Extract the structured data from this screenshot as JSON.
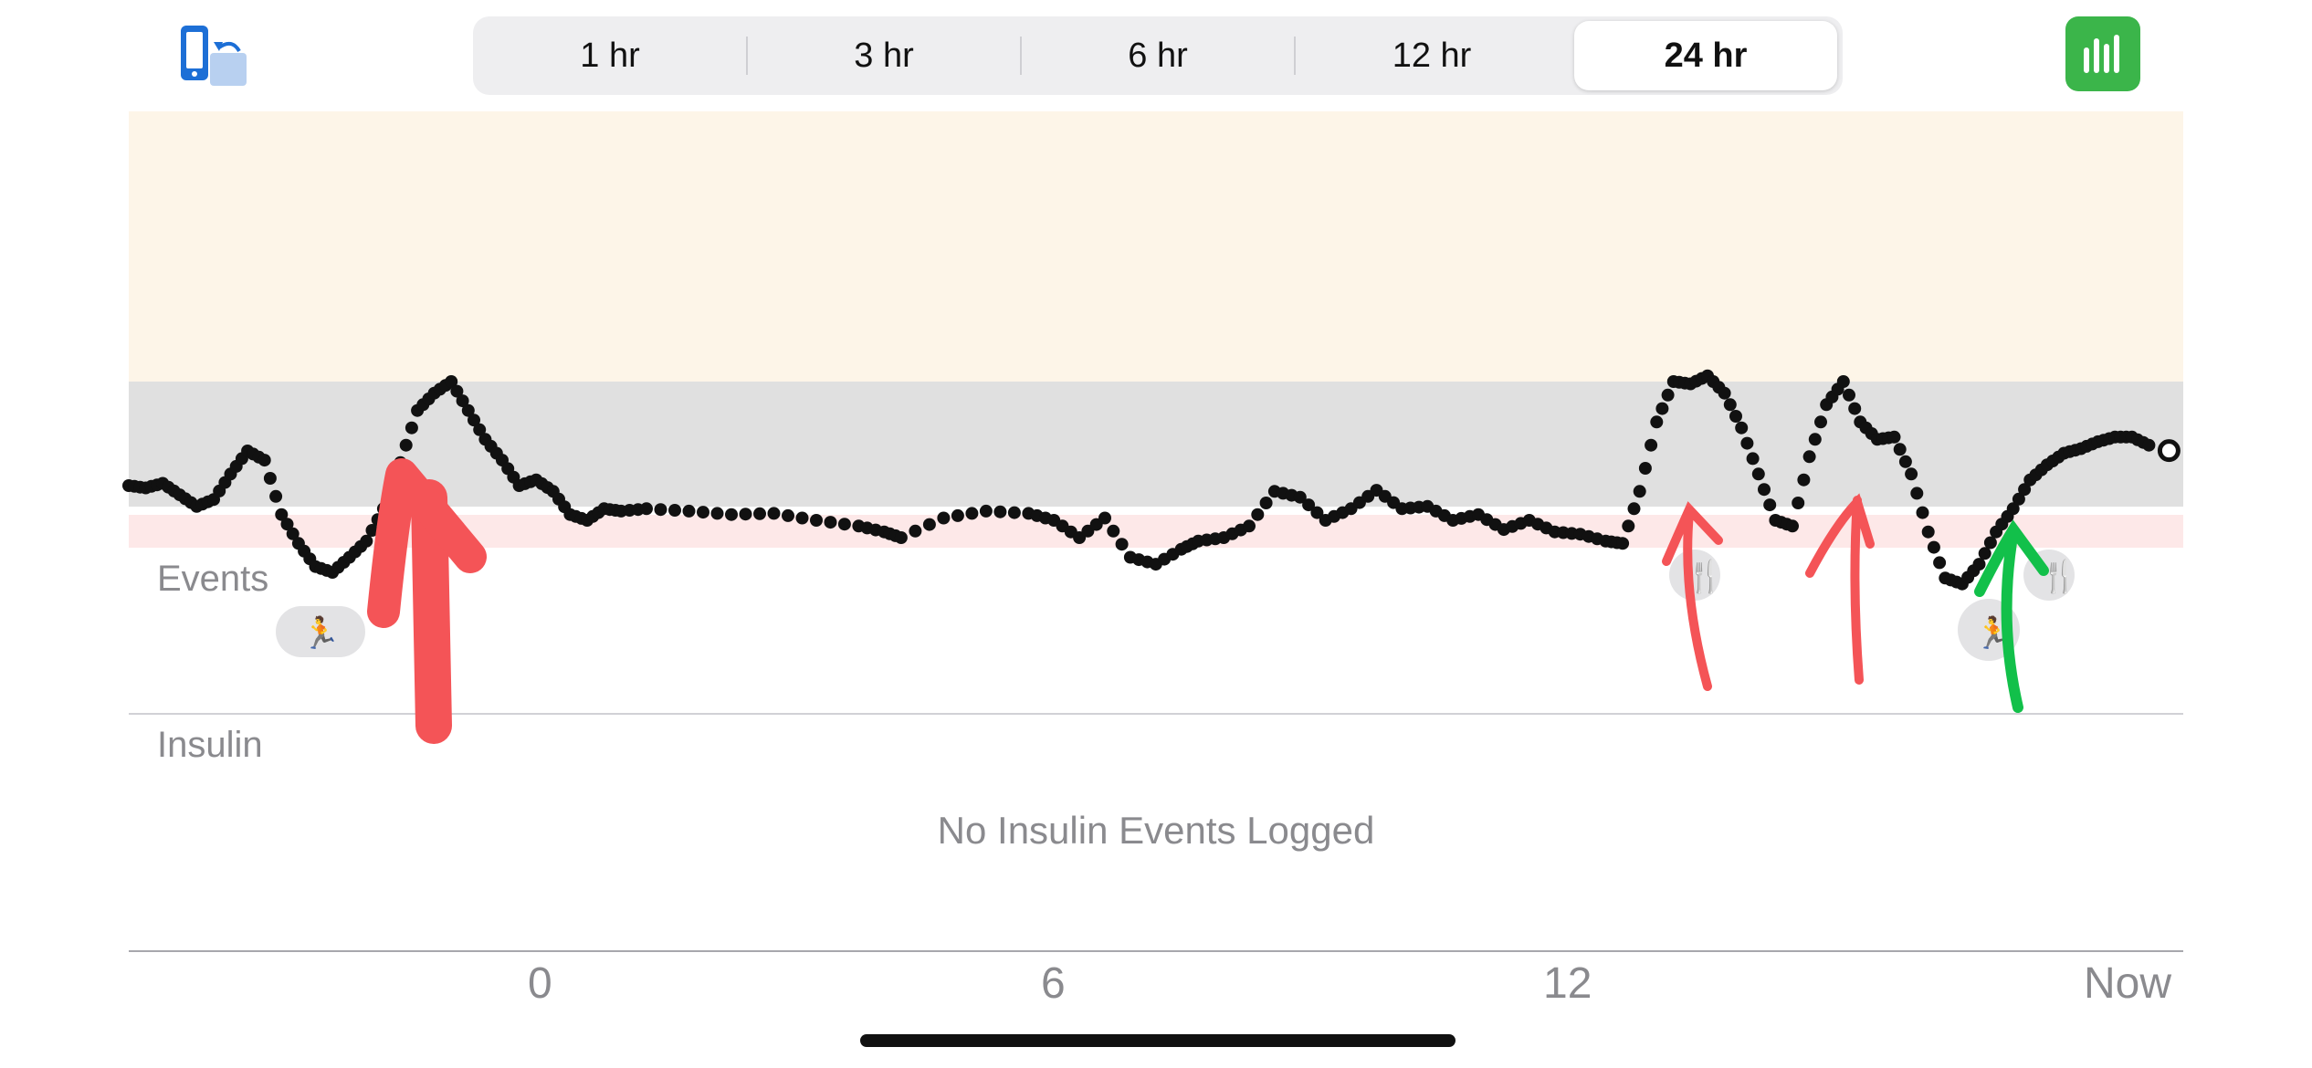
{
  "toolbar": {
    "rotate_icon": "rotate-screen-icon",
    "chart_icon": "bar-chart-icon",
    "accent": "#3bb54a"
  },
  "time_ranges": [
    {
      "label": "1 hr",
      "selected": false
    },
    {
      "label": "3 hr",
      "selected": false
    },
    {
      "label": "6 hr",
      "selected": false
    },
    {
      "label": "12 hr",
      "selected": false
    },
    {
      "label": "24 hr",
      "selected": true
    }
  ],
  "sections": {
    "events": "Events",
    "insulin": "Insulin",
    "no_insulin": "No Insulin Events Logged"
  },
  "x_axis": {
    "ticks": [
      "0",
      "6",
      "12",
      "Now"
    ]
  },
  "colors": {
    "high_zone": "#fdf5e8",
    "target_band": "#e0e0e0",
    "low_zone": "#fde8e8",
    "points": "#111111",
    "annotation_red": "#f45457",
    "annotation_green": "#12c04a",
    "event_badge": "#e3e3e5"
  },
  "chart_data": {
    "type": "scatter",
    "x_unit": "hours",
    "xlim": [
      -4.6,
      19.4
    ],
    "ylim": [
      0,
      600
    ],
    "series": [
      {
        "values": [
          [
            -4.6,
            330
          ],
          [
            -4.4,
            328
          ],
          [
            -4.2,
            332
          ],
          [
            -4.0,
            322
          ],
          [
            -3.8,
            312
          ],
          [
            -3.6,
            318
          ],
          [
            -3.4,
            340
          ],
          [
            -3.2,
            360
          ],
          [
            -3.0,
            352
          ],
          [
            -2.8,
            305
          ],
          [
            -2.6,
            280
          ],
          [
            -2.4,
            260
          ],
          [
            -2.2,
            255
          ],
          [
            -2.0,
            268
          ],
          [
            -1.8,
            282
          ],
          [
            -1.6,
            310
          ],
          [
            -1.4,
            350
          ],
          [
            -1.2,
            395
          ],
          [
            -1.0,
            410
          ],
          [
            -0.8,
            420
          ],
          [
            -0.6,
            395
          ],
          [
            -0.4,
            370
          ],
          [
            -0.2,
            352
          ],
          [
            0.0,
            330
          ],
          [
            0.2,
            335
          ],
          [
            0.4,
            325
          ],
          [
            0.6,
            305
          ],
          [
            0.8,
            300
          ],
          [
            1.0,
            310
          ],
          [
            1.2,
            308
          ],
          [
            1.5,
            310
          ],
          [
            2.0,
            308
          ],
          [
            2.5,
            305
          ],
          [
            3.0,
            306
          ],
          [
            3.5,
            300
          ],
          [
            4.0,
            295
          ],
          [
            4.3,
            290
          ],
          [
            4.5,
            285
          ],
          [
            5.0,
            302
          ],
          [
            5.5,
            308
          ],
          [
            6.0,
            306
          ],
          [
            6.3,
            300
          ],
          [
            6.6,
            285
          ],
          [
            6.9,
            302
          ],
          [
            7.2,
            268
          ],
          [
            7.5,
            262
          ],
          [
            7.8,
            275
          ],
          [
            8.0,
            282
          ],
          [
            8.3,
            285
          ],
          [
            8.6,
            295
          ],
          [
            8.9,
            325
          ],
          [
            9.2,
            320
          ],
          [
            9.5,
            300
          ],
          [
            9.8,
            310
          ],
          [
            10.1,
            326
          ],
          [
            10.4,
            310
          ],
          [
            10.7,
            312
          ],
          [
            11.0,
            300
          ],
          [
            11.3,
            305
          ],
          [
            11.6,
            292
          ],
          [
            11.9,
            300
          ],
          [
            12.2,
            290
          ],
          [
            12.5,
            288
          ],
          [
            12.8,
            282
          ],
          [
            13.0,
            280
          ],
          [
            13.2,
            325
          ],
          [
            13.4,
            385
          ],
          [
            13.6,
            420
          ],
          [
            13.8,
            418
          ],
          [
            14.0,
            425
          ],
          [
            14.2,
            410
          ],
          [
            14.4,
            380
          ],
          [
            14.6,
            340
          ],
          [
            14.8,
            300
          ],
          [
            15.0,
            295
          ],
          [
            15.2,
            355
          ],
          [
            15.4,
            400
          ],
          [
            15.6,
            420
          ],
          [
            15.8,
            385
          ],
          [
            16.0,
            370
          ],
          [
            16.2,
            372
          ],
          [
            16.4,
            340
          ],
          [
            16.6,
            290
          ],
          [
            16.8,
            250
          ],
          [
            17.0,
            245
          ],
          [
            17.2,
            262
          ],
          [
            17.4,
            290
          ],
          [
            17.6,
            310
          ],
          [
            17.8,
            335
          ],
          [
            18.0,
            348
          ],
          [
            18.2,
            358
          ],
          [
            18.4,
            362
          ],
          [
            18.6,
            368
          ],
          [
            18.8,
            372
          ],
          [
            19.0,
            372
          ],
          [
            19.2,
            365
          ]
        ]
      }
    ],
    "bands": {
      "target": [
        250,
        450
      ],
      "low": [
        225,
        250
      ]
    }
  }
}
